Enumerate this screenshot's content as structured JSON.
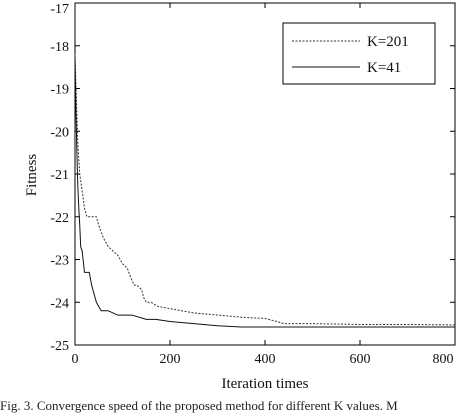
{
  "chart_data": {
    "type": "line",
    "xlabel": "Iteration times",
    "ylabel": "Fitness",
    "xlim": [
      0,
      800
    ],
    "ylim": [
      -25,
      -17
    ],
    "x_ticks": [
      "0",
      "200",
      "400",
      "600",
      "800"
    ],
    "y_ticks": [
      "-17",
      "-18",
      "-19",
      "-20",
      "-21",
      "-22",
      "-23",
      "-24",
      "-25"
    ],
    "grid": false,
    "legend_position": "top-right",
    "series": [
      {
        "name": "K=201",
        "style": "dashed",
        "color": "#333333",
        "x": [
          0,
          3,
          6,
          10,
          15,
          20,
          25,
          30,
          45,
          50,
          60,
          70,
          80,
          90,
          100,
          110,
          120,
          125,
          130,
          140,
          145,
          150,
          160,
          175,
          200,
          250,
          300,
          350,
          400,
          425,
          440,
          500,
          600,
          700,
          800
        ],
        "y": [
          -18.2,
          -19.3,
          -20.3,
          -21.0,
          -21.4,
          -21.8,
          -22.0,
          -22.0,
          -22.0,
          -22.2,
          -22.5,
          -22.7,
          -22.8,
          -22.9,
          -23.1,
          -23.2,
          -23.5,
          -23.6,
          -23.6,
          -23.7,
          -23.9,
          -24.0,
          -24.0,
          -24.1,
          -24.15,
          -24.25,
          -24.3,
          -24.35,
          -24.38,
          -24.45,
          -24.5,
          -24.5,
          -24.52,
          -24.52,
          -24.53
        ]
      },
      {
        "name": "K=41",
        "style": "solid",
        "color": "#111111",
        "x": [
          0,
          2,
          4,
          6,
          8,
          10,
          12,
          15,
          20,
          30,
          35,
          40,
          45,
          50,
          55,
          60,
          65,
          70,
          90,
          100,
          120,
          150,
          170,
          200,
          250,
          300,
          350,
          400,
          500,
          600,
          700,
          800
        ],
        "y": [
          -18.3,
          -19.5,
          -20.5,
          -21.3,
          -21.8,
          -22.2,
          -22.7,
          -22.8,
          -23.3,
          -23.3,
          -23.6,
          -23.8,
          -24.0,
          -24.1,
          -24.2,
          -24.2,
          -24.2,
          -24.2,
          -24.3,
          -24.3,
          -24.3,
          -24.4,
          -24.4,
          -24.45,
          -24.5,
          -24.55,
          -24.58,
          -24.58,
          -24.58,
          -24.58,
          -24.58,
          -24.58
        ]
      }
    ]
  },
  "caption": "Fig. 3.   Convergence speed of the proposed method for different K values. M"
}
